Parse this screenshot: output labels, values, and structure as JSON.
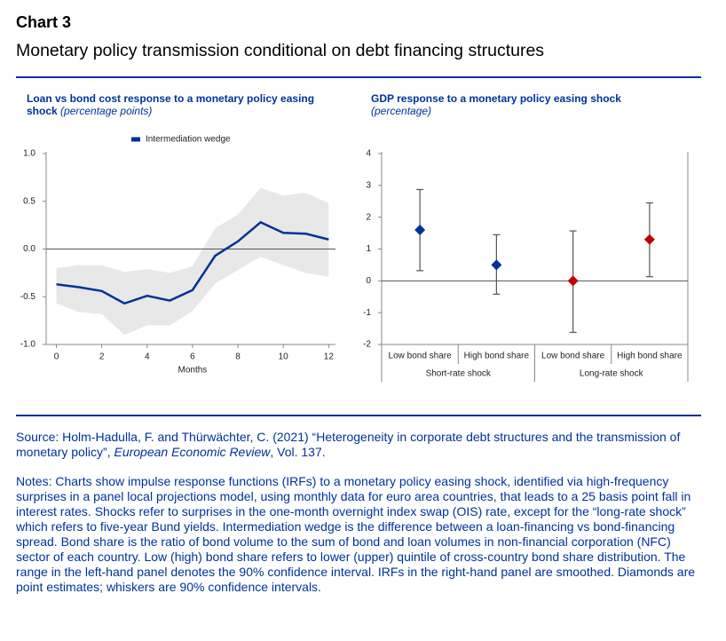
{
  "header": {
    "label": "Chart 3",
    "title": "Monetary policy transmission conditional on debt financing structures"
  },
  "chart_data": [
    {
      "type": "line",
      "title": "Loan vs bond cost response to a monetary policy easing shock",
      "units": "(percentage points)",
      "x_label": "Months",
      "x": [
        0,
        1,
        2,
        3,
        4,
        5,
        6,
        7,
        8,
        9,
        10,
        11,
        12
      ],
      "series": [
        {
          "name": "Intermediation wedge",
          "color": "#003299",
          "values": [
            -0.37,
            -0.4,
            -0.44,
            -0.57,
            -0.49,
            -0.54,
            -0.43,
            -0.07,
            0.08,
            0.28,
            0.17,
            0.16,
            0.1
          ]
        }
      ],
      "band": {
        "color": "#e8e8e8",
        "lower": [
          -0.57,
          -0.66,
          -0.68,
          -0.9,
          -0.8,
          -0.8,
          -0.65,
          -0.36,
          -0.22,
          -0.08,
          -0.17,
          -0.25,
          -0.29
        ],
        "upper": [
          -0.2,
          -0.17,
          -0.17,
          -0.24,
          -0.21,
          -0.25,
          -0.18,
          0.22,
          0.36,
          0.64,
          0.56,
          0.59,
          0.48
        ]
      },
      "xlim": [
        -0.45,
        12.3
      ],
      "xticks": [
        0,
        2,
        4,
        6,
        8,
        10,
        12
      ],
      "ylim": [
        -1,
        1
      ],
      "yticks": [
        {
          "value": -1,
          "label": "-1.0"
        },
        -0.5,
        {
          "value": 0,
          "label": "0.0"
        },
        0.5,
        {
          "value": 1,
          "label": "1.0"
        }
      ],
      "legend": "top"
    },
    {
      "type": "errorbar",
      "title": "GDP response to a monetary policy easing shock",
      "units": "(percentage)",
      "categories": [
        "Low bond share",
        "High bond share",
        "Low bond share",
        "High bond share"
      ],
      "groups": [
        "Short-rate shock",
        "Long-rate shock"
      ],
      "values": [
        1.6,
        0.5,
        0,
        1.3
      ],
      "lower": [
        0.32,
        -0.42,
        -1.62,
        0.13
      ],
      "upper": [
        2.87,
        1.45,
        1.57,
        2.45
      ],
      "colors": [
        "#003299",
        "#003299",
        "#c00000",
        "#c00000"
      ],
      "ylim": [
        -2,
        4
      ],
      "yticks": [
        -2,
        -1,
        0,
        1,
        2,
        3,
        4
      ]
    }
  ],
  "source": {
    "text": "Source: Holm-Hadulla, F. and Thürwächter, C. (2021) “Heterogeneity in corporate debt structures and the transmission of monetary policy”, ",
    "journal": "European Economic Review",
    "end": ", Vol. 137."
  },
  "notes": "Notes: Charts show impulse response functions (IRFs) to a monetary policy easing shock, identified via high-frequency surprises in a panel local projections model, using monthly data for euro area countries, that leads to a 25 basis point fall in interest rates. Shocks refer to surprises in the one-month overnight index swap (OIS) rate, except for the “long-rate shock” which refers to five-year Bund yields. Intermediation wedge is the difference between a loan-financing vs bond-financing spread. Bond share is the ratio of bond volume to the sum of bond and loan volumes in non-financial corporation (NFC) sector of each country. Low (high) bond share refers to lower (upper) quintile of cross-country bond share distribution. The range in the left-hand panel denotes the 90% confidence interval. IRFs in the right-hand panel are smoothed. Diamonds are point estimates; whiskers are 90% confidence intervals."
}
